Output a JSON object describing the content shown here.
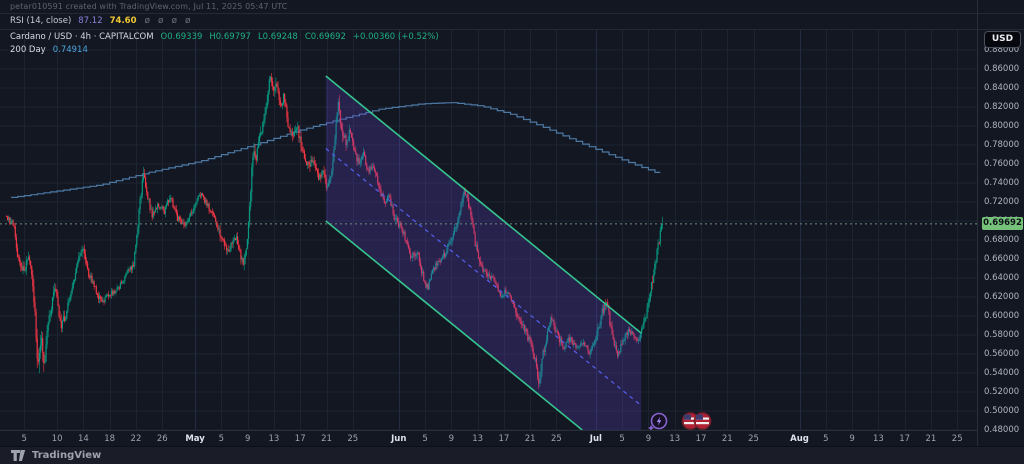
{
  "watermark": {
    "text": "petar010591 created with TradingView.com, Jul 11, 2025 05:47 UTC"
  },
  "rsi": {
    "title": "RSI (14, close)",
    "value": "87.12",
    "ma_value": "74.60"
  },
  "icons": {
    "slash_glyph": "ø"
  },
  "legend": {
    "title": "Cardano / USD · 4h · CAPITALCOM",
    "o": "O0.69339",
    "h": "H0.69797",
    "l": "L0.69248",
    "c": "C0.69692",
    "change": "+0.00360 (+0.52%)",
    "ma_label": "200 Day",
    "ma_value": "0.74914"
  },
  "axis": {
    "currency": "USD",
    "last_price_label": "0.69692"
  },
  "footer": {
    "brand": "TradingView"
  },
  "chart_data": {
    "type": "candlestick",
    "symbol": "Cardano / USD",
    "interval": "4h",
    "exchange": "CAPITALCOM",
    "ohlc": {
      "open": 0.69339,
      "high": 0.69797,
      "low": 0.69248,
      "close": 0.69692,
      "change": "+0.00360",
      "change_pct": "+0.52%"
    },
    "rsi": {
      "value": 87.12,
      "ma": 74.6
    },
    "last_price": 0.69692,
    "last_high": 0.7045,
    "price_axis": {
      "min": 0.48,
      "max": 0.88,
      "step": 0.02,
      "ticks": [
        0.88,
        0.86,
        0.84,
        0.82,
        0.8,
        0.78,
        0.76,
        0.74,
        0.72,
        0.7,
        0.68,
        0.66,
        0.64,
        0.62,
        0.6,
        0.58,
        0.56,
        0.54,
        0.52,
        0.5,
        0.48
      ]
    },
    "time_axis": {
      "ticks": [
        {
          "label": "5",
          "t": 4
        },
        {
          "label": "10",
          "t": 9
        },
        {
          "label": "14",
          "t": 13
        },
        {
          "label": "18",
          "t": 17
        },
        {
          "label": "22",
          "t": 21
        },
        {
          "label": "26",
          "t": 25
        },
        {
          "label": "May",
          "t": 30,
          "month": true
        },
        {
          "label": "5",
          "t": 34
        },
        {
          "label": "9",
          "t": 38
        },
        {
          "label": "13",
          "t": 42
        },
        {
          "label": "17",
          "t": 46
        },
        {
          "label": "21",
          "t": 50
        },
        {
          "label": "25",
          "t": 54
        },
        {
          "label": "Jun",
          "t": 61,
          "month": true
        },
        {
          "label": "5",
          "t": 65
        },
        {
          "label": "9",
          "t": 69
        },
        {
          "label": "13",
          "t": 73
        },
        {
          "label": "17",
          "t": 77
        },
        {
          "label": "21",
          "t": 81
        },
        {
          "label": "25",
          "t": 85
        },
        {
          "label": "Jul",
          "t": 91,
          "month": true
        },
        {
          "label": "5",
          "t": 95
        },
        {
          "label": "9",
          "t": 99
        },
        {
          "label": "13",
          "t": 103
        },
        {
          "label": "17",
          "t": 107
        },
        {
          "label": "21",
          "t": 111
        },
        {
          "label": "25",
          "t": 115
        },
        {
          "label": "Aug",
          "t": 122,
          "month": true
        },
        {
          "label": "5",
          "t": 126
        },
        {
          "label": "9",
          "t": 130
        },
        {
          "label": "13",
          "t": 134
        },
        {
          "label": "17",
          "t": 138
        },
        {
          "label": "21",
          "t": 142
        },
        {
          "label": "25",
          "t": 146
        }
      ]
    },
    "price_path": [
      [
        1.3,
        0.705,
        0.006
      ],
      [
        2.6,
        0.695,
        0.006
      ],
      [
        3.2,
        0.662,
        0.008
      ],
      [
        4,
        0.648,
        0.008
      ],
      [
        5,
        0.662,
        0.007
      ],
      [
        5.7,
        0.615,
        0.012
      ],
      [
        6.2,
        0.538,
        0.018
      ],
      [
        6.7,
        0.578,
        0.014
      ],
      [
        7.2,
        0.552,
        0.012
      ],
      [
        7.8,
        0.59,
        0.01
      ],
      [
        8.5,
        0.618,
        0.009
      ],
      [
        9,
        0.632,
        0.008
      ],
      [
        9.6,
        0.59,
        0.01
      ],
      [
        10.5,
        0.601,
        0.008
      ],
      [
        11.5,
        0.632,
        0.007
      ],
      [
        12.2,
        0.655,
        0.007
      ],
      [
        13,
        0.672,
        0.007
      ],
      [
        13.8,
        0.648,
        0.007
      ],
      [
        15,
        0.628,
        0.006
      ],
      [
        16,
        0.612,
        0.007
      ],
      [
        17,
        0.623,
        0.006
      ],
      [
        18.5,
        0.628,
        0.005
      ],
      [
        19.5,
        0.642,
        0.005
      ],
      [
        20.8,
        0.655,
        0.006
      ],
      [
        21.8,
        0.718,
        0.012
      ],
      [
        22.2,
        0.748,
        0.009
      ],
      [
        22.8,
        0.733,
        0.008
      ],
      [
        23.6,
        0.705,
        0.007
      ],
      [
        24.6,
        0.718,
        0.006
      ],
      [
        25.4,
        0.709,
        0.006
      ],
      [
        26.4,
        0.728,
        0.006
      ],
      [
        27.4,
        0.703,
        0.007
      ],
      [
        28.6,
        0.695,
        0.006
      ],
      [
        30,
        0.714,
        0.006
      ],
      [
        31,
        0.729,
        0.006
      ],
      [
        32,
        0.718,
        0.006
      ],
      [
        33,
        0.703,
        0.006
      ],
      [
        34,
        0.684,
        0.007
      ],
      [
        35.2,
        0.669,
        0.007
      ],
      [
        36.4,
        0.682,
        0.007
      ],
      [
        37.4,
        0.655,
        0.008
      ],
      [
        38,
        0.672,
        0.009
      ],
      [
        38.5,
        0.718,
        0.014
      ],
      [
        38.9,
        0.775,
        0.014
      ],
      [
        39.5,
        0.768,
        0.009
      ],
      [
        40.3,
        0.798,
        0.01
      ],
      [
        41,
        0.818,
        0.01
      ],
      [
        41.6,
        0.855,
        0.007
      ],
      [
        42.1,
        0.832,
        0.011
      ],
      [
        42.6,
        0.845,
        0.009
      ],
      [
        43.2,
        0.818,
        0.009
      ],
      [
        43.7,
        0.834,
        0.008
      ],
      [
        44.3,
        0.801,
        0.009
      ],
      [
        45.2,
        0.79,
        0.008
      ],
      [
        45.7,
        0.8,
        0.007
      ],
      [
        46.4,
        0.776,
        0.008
      ],
      [
        47.3,
        0.758,
        0.008
      ],
      [
        48.2,
        0.766,
        0.007
      ],
      [
        49,
        0.744,
        0.008
      ],
      [
        49.6,
        0.756,
        0.007
      ],
      [
        50.2,
        0.731,
        0.008
      ],
      [
        50.8,
        0.745,
        0.008
      ],
      [
        51.4,
        0.78,
        0.01
      ],
      [
        51.9,
        0.828,
        0.01
      ],
      [
        52.4,
        0.8,
        0.01
      ],
      [
        53.2,
        0.782,
        0.008
      ],
      [
        53.7,
        0.795,
        0.007
      ],
      [
        54.4,
        0.773,
        0.007
      ],
      [
        55.2,
        0.759,
        0.007
      ],
      [
        55.7,
        0.773,
        0.006
      ],
      [
        56.5,
        0.75,
        0.007
      ],
      [
        57.3,
        0.759,
        0.006
      ],
      [
        58.2,
        0.735,
        0.007
      ],
      [
        59,
        0.719,
        0.007
      ],
      [
        59.6,
        0.729,
        0.006
      ],
      [
        60.5,
        0.703,
        0.007
      ],
      [
        61.3,
        0.695,
        0.006
      ],
      [
        62.2,
        0.682,
        0.006
      ],
      [
        63,
        0.662,
        0.007
      ],
      [
        64,
        0.667,
        0.006
      ],
      [
        65,
        0.638,
        0.007
      ],
      [
        65.6,
        0.629,
        0.007
      ],
      [
        66.3,
        0.648,
        0.006
      ],
      [
        67.2,
        0.657,
        0.006
      ],
      [
        68.2,
        0.666,
        0.006
      ],
      [
        69.2,
        0.682,
        0.007
      ],
      [
        70.2,
        0.702,
        0.008
      ],
      [
        71.2,
        0.733,
        0.008
      ],
      [
        71.7,
        0.72,
        0.008
      ],
      [
        72.4,
        0.693,
        0.008
      ],
      [
        73.2,
        0.662,
        0.008
      ],
      [
        74.2,
        0.647,
        0.007
      ],
      [
        75.2,
        0.641,
        0.006
      ],
      [
        76,
        0.635,
        0.006
      ],
      [
        76.6,
        0.621,
        0.006
      ],
      [
        77.3,
        0.626,
        0.006
      ],
      [
        78.3,
        0.617,
        0.006
      ],
      [
        79.2,
        0.6,
        0.007
      ],
      [
        80.2,
        0.586,
        0.007
      ],
      [
        81.2,
        0.573,
        0.008
      ],
      [
        82,
        0.551,
        0.01
      ],
      [
        82.5,
        0.53,
        0.012
      ],
      [
        83,
        0.557,
        0.01
      ],
      [
        83.6,
        0.576,
        0.008
      ],
      [
        84.3,
        0.598,
        0.008
      ],
      [
        85.2,
        0.584,
        0.007
      ],
      [
        86.2,
        0.566,
        0.007
      ],
      [
        87.2,
        0.576,
        0.006
      ],
      [
        88.2,
        0.566,
        0.006
      ],
      [
        89.2,
        0.571,
        0.005
      ],
      [
        90.2,
        0.561,
        0.006
      ],
      [
        91.2,
        0.576,
        0.007
      ],
      [
        92.2,
        0.606,
        0.008
      ],
      [
        92.8,
        0.616,
        0.007
      ],
      [
        93.6,
        0.581,
        0.008
      ],
      [
        94.4,
        0.558,
        0.008
      ],
      [
        95.2,
        0.571,
        0.007
      ],
      [
        96.2,
        0.586,
        0.006
      ],
      [
        97,
        0.579,
        0.006
      ],
      [
        97.6,
        0.571,
        0.006
      ],
      [
        98.2,
        0.585,
        0.007
      ],
      [
        98.8,
        0.601,
        0.008
      ],
      [
        99.4,
        0.621,
        0.009
      ],
      [
        100,
        0.648,
        0.01
      ],
      [
        100.6,
        0.672,
        0.009
      ],
      [
        101.1,
        0.695,
        0.007
      ],
      [
        101.25,
        0.69692,
        0.005
      ]
    ],
    "ma200": {
      "label": "200 Day",
      "value": 0.74914,
      "points": [
        [
          1.1,
          0.724
        ],
        [
          7.9,
          0.7305
        ],
        [
          15.5,
          0.738
        ],
        [
          23.1,
          0.7515
        ],
        [
          30.7,
          0.763
        ],
        [
          38.4,
          0.779
        ],
        [
          46,
          0.7958
        ],
        [
          52.1,
          0.8074
        ],
        [
          58.1,
          0.8179
        ],
        [
          64.2,
          0.8232
        ],
        [
          68.8,
          0.8247
        ],
        [
          73.4,
          0.8211
        ],
        [
          77.9,
          0.8126
        ],
        [
          82.5,
          0.8
        ],
        [
          87.1,
          0.7863
        ],
        [
          91.6,
          0.7737
        ],
        [
          96.2,
          0.761
        ],
        [
          100.8,
          0.7491
        ]
      ]
    },
    "channel": {
      "t_start": 49.9,
      "t_end": 97.9,
      "p_upper_start": 0.8526,
      "p_upper_end": 0.582,
      "p_lower_start": 0.7,
      "line_color": "#35c48e",
      "mid_color": "#5560f0",
      "fill_color": "rgba(96,66,204,0.25)"
    },
    "colors": {
      "up": "#089981",
      "down": "#f23645",
      "grid": "#1d2331",
      "grid_month": "#242c42",
      "ma": "#4c78a4",
      "price_line": "#6e8f7d",
      "background": "#131722"
    }
  }
}
